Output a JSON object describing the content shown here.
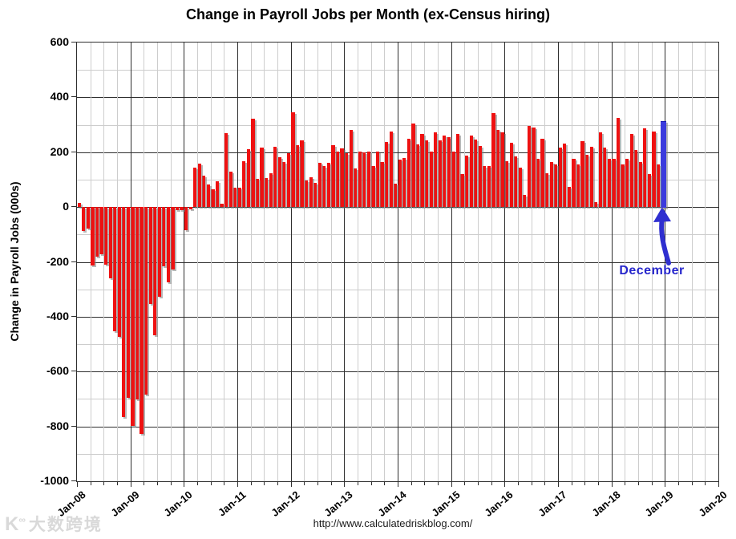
{
  "title": "Change in Payroll Jobs per Month (ex-Census hiring)",
  "y_axis": {
    "title": "Change in Payroll Jobs (000s)",
    "tick_labels": [
      "600",
      "400",
      "200",
      "0",
      "-200",
      "-400",
      "-600",
      "-800",
      "-1000"
    ]
  },
  "x_axis": {
    "tick_labels": [
      "Jan-08",
      "Jan-09",
      "Jan-10",
      "Jan-11",
      "Jan-12",
      "Jan-13",
      "Jan-14",
      "Jan-15",
      "Jan-16",
      "Jan-17",
      "Jan-18",
      "Jan-19",
      "Jan-20"
    ]
  },
  "annotation": {
    "label": "December"
  },
  "footer": {
    "url": "http://www.calculatedriskblog.com/"
  },
  "watermark": {
    "logo": "K",
    "logo_sup": "∞",
    "text": "大数跨境"
  },
  "colors": {
    "bar": "#ee1111",
    "highlight_bar": "#3b3bdd",
    "annotation_text": "#2626cc",
    "major_grid": "#2e2e2e",
    "minor_grid": "#cdcdcd"
  },
  "chart_data": {
    "type": "bar",
    "title": "Change in Payroll Jobs per Month (ex-Census hiring)",
    "xlabel": "",
    "ylabel": "Change in Payroll Jobs (000s)",
    "unit": "thousands of jobs, monthly change",
    "ylim": [
      -1000,
      600
    ],
    "y_major_step": 200,
    "y_minor_step": 100,
    "x_start": "Jan-08",
    "x_end": "Dec-18",
    "x_gridlines": "yearly major, quarterly minor",
    "legend": "none",
    "categories_yearly": [
      "Jan-08",
      "Jan-09",
      "Jan-10",
      "Jan-11",
      "Jan-12",
      "Jan-13",
      "Jan-14",
      "Jan-15",
      "Jan-16",
      "Jan-17",
      "Jan-18",
      "Jan-19",
      "Jan-20"
    ],
    "values": [
      15,
      -86,
      -80,
      -214,
      -182,
      -171,
      -210,
      -259,
      -452,
      -474,
      -765,
      -697,
      -798,
      -701,
      -826,
      -684,
      -354,
      -467,
      -327,
      -216,
      -275,
      -227,
      -10,
      -12,
      -85,
      -8,
      145,
      158,
      114,
      82,
      65,
      94,
      11,
      269,
      128,
      70,
      70,
      168,
      212,
      322,
      102,
      217,
      106,
      122,
      221,
      183,
      164,
      196,
      345,
      226,
      243,
      96,
      110,
      88,
      160,
      150,
      161,
      225,
      203,
      214,
      197,
      280,
      141,
      203,
      199,
      201,
      149,
      202,
      164,
      237,
      274,
      84,
      172,
      179,
      250,
      304,
      229,
      267,
      243,
      203,
      271,
      243,
      261,
      256,
      201,
      266,
      119,
      187,
      260,
      245,
      223,
      150,
      149,
      342,
      280,
      271,
      168,
      233,
      186,
      144,
      43,
      297,
      291,
      176,
      249,
      124,
      164,
      155,
      216,
      232,
      73,
      175,
      155,
      239,
      190,
      221,
      18,
      271,
      216,
      175,
      176,
      324,
      155,
      175,
      268,
      208,
      165,
      286,
      119,
      274,
      155,
      312
    ],
    "highlight": {
      "index": 131,
      "month": "Dec-18",
      "value": 312,
      "label": "December"
    }
  }
}
